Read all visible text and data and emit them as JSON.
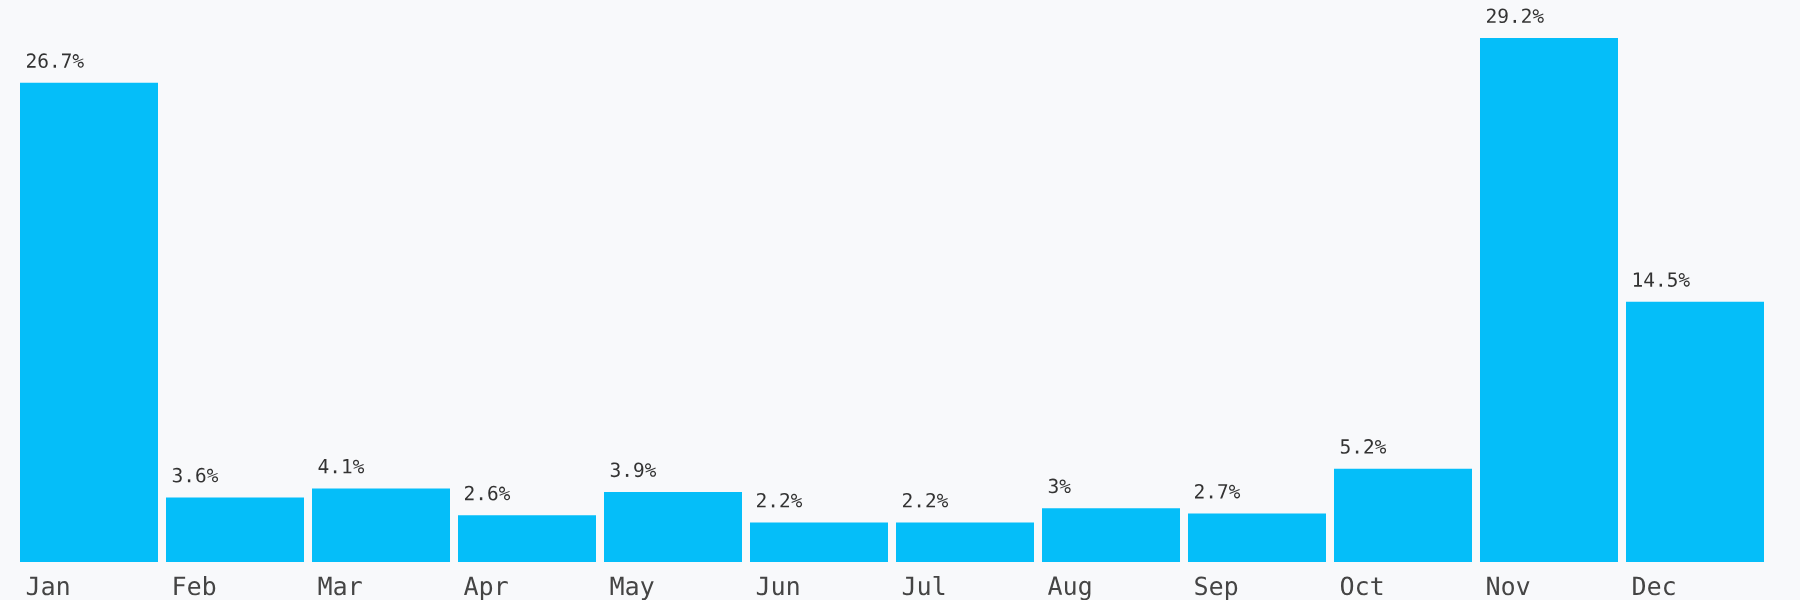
{
  "chart_data": {
    "type": "bar",
    "categories": [
      "Jan",
      "Feb",
      "Mar",
      "Apr",
      "May",
      "Jun",
      "Jul",
      "Aug",
      "Sep",
      "Oct",
      "Nov",
      "Dec"
    ],
    "values": [
      26.7,
      3.6,
      4.1,
      2.6,
      3.9,
      2.2,
      2.2,
      3,
      2.7,
      5.2,
      29.2,
      14.5
    ],
    "value_labels": [
      "26.7%",
      "3.6%",
      "4.1%",
      "2.6%",
      "3.9%",
      "2.2%",
      "2.2%",
      "3%",
      "2.7%",
      "5.2%",
      "29.2%",
      "14.5%"
    ],
    "color": "#05bef9"
  }
}
